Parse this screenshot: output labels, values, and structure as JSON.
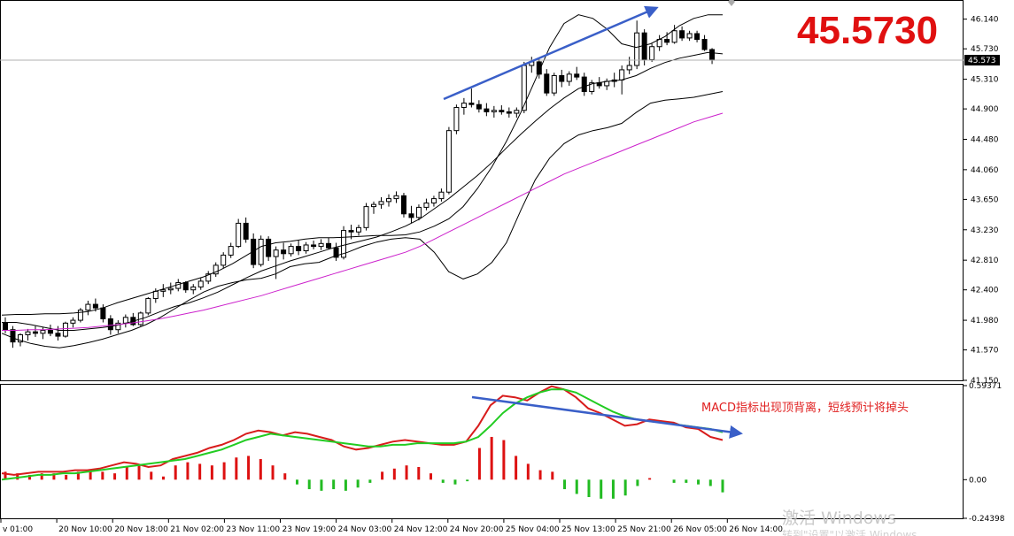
{
  "current_price_display": "45.5730",
  "colors": {
    "bull": "#ffffff",
    "bear": "#000000",
    "ma": "#cc22cc",
    "bollinger": "#000000",
    "macd_fast": "#d81c1c",
    "macd_signal": "#22cc22",
    "hist_pos": "#dd1111",
    "hist_neg": "#22bb22",
    "arrow": "#3a5fc8",
    "price_marker": "#000000"
  },
  "chart_data": [
    {
      "type": "candlestick",
      "title": "",
      "ylim": [
        41.15,
        46.38
      ],
      "y_ticks": [
        "46.140",
        "45.730",
        "45.310",
        "44.900",
        "44.480",
        "44.060",
        "43.650",
        "43.230",
        "42.810",
        "42.400",
        "41.980",
        "41.570",
        "41.150"
      ],
      "current_price_label": "45.573",
      "current_price": 45.573,
      "overlays": [
        "bollinger_upper",
        "bollinger_middle",
        "bollinger_lower",
        "moving_average"
      ],
      "annotation": "",
      "candles": [
        [
          41.95,
          42.02,
          41.8,
          41.85
        ],
        [
          41.85,
          41.9,
          41.6,
          41.68
        ],
        [
          41.68,
          41.8,
          41.62,
          41.78
        ],
        [
          41.78,
          41.86,
          41.7,
          41.82
        ],
        [
          41.82,
          41.9,
          41.75,
          41.8
        ],
        [
          41.8,
          41.88,
          41.72,
          41.84
        ],
        [
          41.84,
          41.92,
          41.76,
          41.8
        ],
        [
          41.8,
          41.9,
          41.7,
          41.76
        ],
        [
          41.76,
          41.96,
          41.74,
          41.94
        ],
        [
          41.94,
          42.02,
          41.88,
          41.98
        ],
        [
          41.98,
          42.15,
          41.95,
          42.12
        ],
        [
          42.12,
          42.25,
          42.05,
          42.2
        ],
        [
          42.2,
          42.28,
          42.1,
          42.15
        ],
        [
          42.15,
          42.2,
          41.95,
          42.0
        ],
        [
          42.0,
          42.05,
          41.78,
          41.85
        ],
        [
          41.85,
          41.98,
          41.8,
          41.94
        ],
        [
          41.94,
          42.06,
          41.88,
          42.02
        ],
        [
          42.02,
          42.08,
          41.9,
          41.92
        ],
        [
          41.92,
          42.1,
          41.9,
          42.08
        ],
        [
          42.08,
          42.3,
          42.05,
          42.28
        ],
        [
          42.28,
          42.42,
          42.22,
          42.38
        ],
        [
          42.38,
          42.48,
          42.3,
          42.4
        ],
        [
          42.4,
          42.5,
          42.34,
          42.42
        ],
        [
          42.42,
          42.55,
          42.38,
          42.5
        ],
        [
          42.5,
          42.52,
          42.36,
          42.4
        ],
        [
          42.4,
          42.48,
          42.34,
          42.44
        ],
        [
          42.44,
          42.56,
          42.4,
          42.52
        ],
        [
          42.52,
          42.66,
          42.48,
          42.62
        ],
        [
          42.62,
          42.78,
          42.58,
          42.74
        ],
        [
          42.74,
          42.92,
          42.7,
          42.88
        ],
        [
          42.88,
          43.05,
          42.84,
          43.0
        ],
        [
          43.0,
          43.38,
          42.98,
          43.32
        ],
        [
          43.32,
          43.4,
          43.05,
          43.1
        ],
        [
          43.1,
          43.18,
          42.7,
          42.75
        ],
        [
          42.75,
          43.15,
          42.72,
          43.1
        ],
        [
          43.1,
          43.14,
          42.8,
          42.86
        ],
        [
          42.86,
          43.0,
          42.55,
          42.95
        ],
        [
          42.95,
          43.05,
          42.82,
          42.9
        ],
        [
          42.9,
          43.04,
          42.86,
          43.0
        ],
        [
          43.0,
          43.08,
          42.88,
          42.94
        ],
        [
          42.94,
          43.06,
          42.9,
          43.02
        ],
        [
          43.02,
          43.08,
          42.96,
          43.0
        ],
        [
          43.0,
          43.1,
          42.95,
          43.04
        ],
        [
          43.04,
          43.12,
          42.96,
          42.98
        ],
        [
          42.98,
          43.05,
          42.8,
          42.85
        ],
        [
          42.85,
          43.28,
          42.82,
          43.22
        ],
        [
          43.22,
          43.3,
          43.1,
          43.2
        ],
        [
          43.2,
          43.3,
          43.15,
          43.26
        ],
        [
          43.26,
          43.6,
          43.22,
          43.55
        ],
        [
          43.55,
          43.62,
          43.45,
          43.58
        ],
        [
          43.58,
          43.68,
          43.52,
          43.62
        ],
        [
          43.62,
          43.72,
          43.55,
          43.66
        ],
        [
          43.66,
          43.76,
          43.6,
          43.7
        ],
        [
          43.7,
          43.74,
          43.4,
          43.45
        ],
        [
          43.45,
          43.56,
          43.32,
          43.4
        ],
        [
          43.4,
          43.58,
          43.36,
          43.54
        ],
        [
          43.54,
          43.66,
          43.5,
          43.6
        ],
        [
          43.6,
          43.7,
          43.55,
          43.66
        ],
        [
          43.66,
          43.8,
          43.62,
          43.75
        ],
        [
          43.75,
          44.65,
          43.72,
          44.6
        ],
        [
          44.6,
          44.96,
          44.55,
          44.92
        ],
        [
          44.92,
          45.05,
          44.82,
          44.98
        ],
        [
          44.98,
          45.18,
          44.92,
          44.96
        ],
        [
          44.96,
          45.02,
          44.85,
          44.9
        ],
        [
          44.9,
          44.98,
          44.8,
          44.86
        ],
        [
          44.86,
          44.94,
          44.78,
          44.88
        ],
        [
          44.88,
          44.95,
          44.82,
          44.86
        ],
        [
          44.86,
          44.92,
          44.78,
          44.84
        ],
        [
          44.84,
          44.92,
          44.78,
          44.88
        ],
        [
          44.88,
          45.55,
          44.84,
          45.5
        ],
        [
          45.5,
          45.62,
          45.4,
          45.55
        ],
        [
          45.55,
          45.6,
          45.32,
          45.38
        ],
        [
          45.38,
          45.45,
          45.08,
          45.12
        ],
        [
          45.12,
          45.4,
          45.08,
          45.36
        ],
        [
          45.36,
          45.44,
          45.2,
          45.28
        ],
        [
          45.28,
          45.42,
          45.22,
          45.38
        ],
        [
          45.38,
          45.48,
          45.3,
          45.34
        ],
        [
          45.34,
          45.4,
          45.08,
          45.14
        ],
        [
          45.14,
          45.3,
          45.1,
          45.26
        ],
        [
          45.26,
          45.34,
          45.18,
          45.22
        ],
        [
          45.22,
          45.32,
          45.16,
          45.28
        ],
        [
          45.28,
          45.4,
          45.2,
          45.3
        ],
        [
          45.3,
          45.5,
          45.1,
          45.44
        ],
        [
          45.44,
          45.62,
          45.38,
          45.5
        ],
        [
          45.5,
          46.12,
          45.45,
          45.95
        ],
        [
          45.95,
          46.0,
          45.5,
          45.58
        ],
        [
          45.58,
          45.8,
          45.55,
          45.76
        ],
        [
          45.76,
          45.92,
          45.7,
          45.86
        ],
        [
          45.86,
          45.96,
          45.78,
          45.82
        ],
        [
          45.82,
          46.06,
          45.8,
          45.98
        ],
        [
          45.98,
          46.04,
          45.84,
          45.88
        ],
        [
          45.88,
          45.98,
          45.84,
          45.94
        ],
        [
          45.94,
          45.98,
          45.82,
          45.86
        ],
        [
          45.86,
          45.92,
          45.7,
          45.72
        ],
        [
          45.72,
          45.74,
          45.52,
          45.573
        ]
      ],
      "bollinger_upper": [
        42.05,
        42.06,
        42.06,
        42.07,
        42.07,
        42.08,
        42.1,
        42.15,
        42.22,
        42.28,
        42.34,
        42.4,
        42.46,
        42.52,
        42.58,
        42.66,
        42.76,
        42.88,
        43.0,
        43.05,
        43.07,
        43.1,
        43.12,
        43.12,
        43.13,
        43.14,
        43.15,
        43.15,
        43.16,
        43.2,
        43.28,
        43.38,
        43.55,
        43.8,
        44.1,
        44.45,
        44.85,
        45.3,
        45.75,
        46.08,
        46.2,
        46.15,
        46.0,
        45.8,
        45.75,
        45.8,
        45.9,
        46.05,
        46.15,
        46.2,
        46.2
      ],
      "bollinger_middle": [
        41.95,
        41.95,
        41.92,
        41.88,
        41.84,
        41.84,
        41.86,
        41.88,
        41.91,
        41.96,
        42.02,
        42.1,
        42.17,
        42.22,
        42.29,
        42.37,
        42.47,
        42.57,
        42.66,
        42.73,
        42.8,
        42.86,
        42.92,
        42.98,
        43.03,
        43.08,
        43.13,
        43.2,
        43.28,
        43.38,
        43.52,
        43.66,
        43.82,
        43.98,
        44.16,
        44.36,
        44.55,
        44.73,
        44.9,
        45.05,
        45.18,
        45.25,
        45.28,
        45.3,
        45.36,
        45.46,
        45.54,
        45.6,
        45.64,
        45.68,
        45.66
      ],
      "bollinger_lower": [
        41.8,
        41.72,
        41.66,
        41.62,
        41.6,
        41.63,
        41.67,
        41.72,
        41.78,
        41.84,
        41.92,
        42.02,
        42.14,
        42.26,
        42.37,
        42.45,
        42.5,
        42.54,
        42.56,
        42.62,
        42.72,
        42.76,
        42.78,
        42.86,
        42.92,
        43.0,
        43.06,
        43.1,
        43.12,
        43.1,
        42.92,
        42.65,
        42.55,
        42.62,
        42.78,
        43.05,
        43.5,
        43.92,
        44.22,
        44.42,
        44.54,
        44.6,
        44.64,
        44.7,
        44.85,
        44.98,
        45.02,
        45.04,
        45.06,
        45.1,
        45.14
      ],
      "moving_average": [
        41.84,
        41.84,
        41.85,
        41.85,
        41.86,
        41.87,
        41.88,
        41.9,
        41.92,
        41.94,
        41.97,
        42.0,
        42.04,
        42.08,
        42.12,
        42.17,
        42.22,
        42.27,
        42.32,
        42.38,
        42.44,
        42.5,
        42.56,
        42.62,
        42.68,
        42.74,
        42.8,
        42.86,
        42.92,
        43.0,
        43.1,
        43.2,
        43.3,
        43.4,
        43.5,
        43.6,
        43.7,
        43.8,
        43.9,
        44.0,
        44.08,
        44.16,
        44.24,
        44.32,
        44.4,
        44.48,
        44.56,
        44.64,
        44.72,
        44.78,
        44.84
      ]
    },
    {
      "type": "macd",
      "ylim": [
        -0.24398,
        0.59371
      ],
      "y_ticks": [
        "0.59371",
        "0.00",
        "-0.24398"
      ],
      "annotation": "MACD指标出现顶背离，短线预计将掉头",
      "macd_line": [
        0.04,
        0.03,
        0.04,
        0.05,
        0.05,
        0.05,
        0.06,
        0.06,
        0.07,
        0.09,
        0.11,
        0.1,
        0.08,
        0.09,
        0.13,
        0.15,
        0.17,
        0.2,
        0.22,
        0.25,
        0.29,
        0.31,
        0.3,
        0.28,
        0.3,
        0.29,
        0.27,
        0.25,
        0.21,
        0.19,
        0.2,
        0.22,
        0.24,
        0.25,
        0.24,
        0.23,
        0.22,
        0.22,
        0.24,
        0.34,
        0.47,
        0.53,
        0.52,
        0.5,
        0.55,
        0.59,
        0.57,
        0.52,
        0.45,
        0.42,
        0.38,
        0.34,
        0.35,
        0.38,
        0.37,
        0.36,
        0.33,
        0.32,
        0.27,
        0.25
      ],
      "signal_line": [
        0.0,
        0.01,
        0.02,
        0.03,
        0.03,
        0.04,
        0.04,
        0.05,
        0.06,
        0.07,
        0.08,
        0.09,
        0.1,
        0.11,
        0.12,
        0.13,
        0.15,
        0.17,
        0.19,
        0.22,
        0.25,
        0.27,
        0.29,
        0.28,
        0.27,
        0.26,
        0.25,
        0.24,
        0.23,
        0.22,
        0.21,
        0.21,
        0.22,
        0.22,
        0.23,
        0.23,
        0.23,
        0.23,
        0.24,
        0.27,
        0.34,
        0.42,
        0.48,
        0.52,
        0.55,
        0.57,
        0.57,
        0.55,
        0.51,
        0.47,
        0.43,
        0.4,
        0.38,
        0.37,
        0.36,
        0.35,
        0.34,
        0.33,
        0.32,
        0.3
      ],
      "histogram": [
        0.04,
        0.02,
        0.02,
        0.02,
        0.02,
        0.01,
        0.02,
        0.01,
        0.01,
        0.02,
        0.03,
        0.01,
        -0.02,
        -0.02,
        0.01,
        0.02,
        0.02,
        0.03,
        0.03,
        0.03,
        0.04,
        0.04,
        0.01,
        0.0,
        0.03,
        0.03,
        0.02,
        0.01,
        -0.02,
        -0.03,
        -0.01,
        0.01,
        0.02,
        0.03,
        0.01,
        0.0,
        -0.01,
        -0.01,
        0.0,
        0.07,
        0.13,
        0.11,
        0.04,
        -0.02,
        0.0,
        0.02,
        0.0,
        -0.03,
        -0.06,
        -0.05,
        -0.05,
        -0.06,
        -0.03,
        0.01,
        0.01,
        0.01,
        -0.01,
        -0.01,
        -0.05,
        -0.05
      ],
      "histogram_scaled": [
        0.05,
        0.04,
        0.03,
        0.04,
        0.04,
        0.03,
        0.05,
        0.06,
        0.05,
        0.04,
        0.08,
        0.09,
        0.05,
        0.02,
        0.09,
        0.11,
        0.1,
        0.09,
        0.11,
        0.14,
        0.15,
        0.13,
        0.09,
        0.04,
        -0.03,
        -0.06,
        -0.07,
        -0.06,
        -0.07,
        -0.05,
        -0.02,
        0.05,
        0.07,
        0.09,
        0.08,
        0.04,
        -0.02,
        -0.03,
        -0.01,
        0.2,
        0.27,
        0.25,
        0.15,
        0.1,
        0.06,
        0.05,
        -0.06,
        -0.09,
        -0.11,
        -0.12,
        -0.12,
        -0.1,
        -0.04,
        0.01,
        0.0,
        -0.02,
        -0.02,
        -0.03,
        -0.04,
        -0.08
      ]
    }
  ],
  "x_axis_labels": [
    "v 01:00",
    "20 Nov 10:00",
    "20 Nov 18:00",
    "21 Nov 02:00",
    "23 Nov 11:00",
    "23 Nov 19:00",
    "24 Nov 03:00",
    "24 Nov 12:00",
    "24 Nov 20:00",
    "25 Nov 04:00",
    "25 Nov 13:00",
    "25 Nov 21:00",
    "26 Nov 05:00",
    "26 Nov 14:00"
  ],
  "watermark": {
    "line1": "激活 Windows",
    "line2": "转到\"设置\"以激活 Windows。"
  }
}
